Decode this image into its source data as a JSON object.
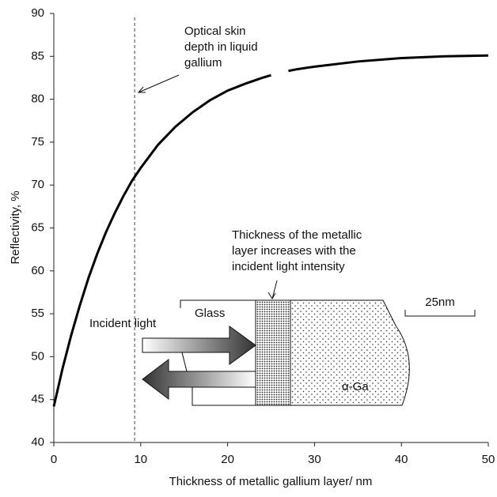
{
  "chart_data": {
    "type": "line",
    "xlabel": "Thickness of metallic gallium layer/ nm",
    "ylabel": "Reflectivity, %",
    "x": [
      0,
      1,
      2,
      3,
      4,
      5,
      6,
      7,
      8,
      9,
      10,
      12,
      14,
      16,
      18,
      20,
      22,
      24,
      25,
      26,
      27,
      28,
      30,
      35,
      40,
      45,
      50
    ],
    "values": [
      44.2,
      48.6,
      52.5,
      56.0,
      59.2,
      62.0,
      64.5,
      66.7,
      68.7,
      70.5,
      72.0,
      74.7,
      76.8,
      78.5,
      79.9,
      81.0,
      81.8,
      82.5,
      82.8,
      null,
      83.3,
      83.5,
      83.8,
      84.4,
      84.8,
      85.0,
      85.1
    ],
    "color": "#000000",
    "xlim": [
      0,
      50
    ],
    "xticks": [
      0,
      10,
      20,
      30,
      40,
      50
    ],
    "ylim": [
      40,
      90
    ],
    "yticks": [
      40,
      45,
      50,
      55,
      60,
      65,
      70,
      75,
      80,
      85,
      90
    ],
    "vline": 9.3,
    "annotations": [
      {
        "lines": [
          "Optical skin",
          "depth in liquid",
          "gallium"
        ]
      },
      {
        "lines": [
          "Thickness of the metallic",
          "layer increases with the",
          "incident light intensity"
        ]
      }
    ],
    "inset": {
      "glass": "Glass",
      "incident": "Incident light",
      "metal": "α-Ga",
      "scale": "25nm"
    }
  }
}
